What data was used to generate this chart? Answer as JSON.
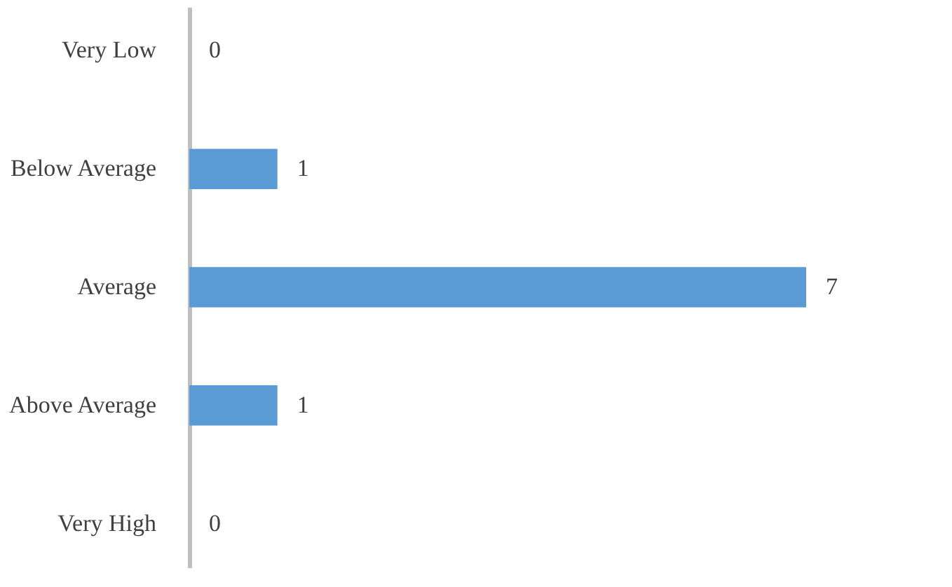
{
  "chart_data": {
    "type": "bar",
    "orientation": "horizontal",
    "categories": [
      "Very Low",
      "Below Average",
      "Average",
      "Above Average",
      "Very High"
    ],
    "values": [
      0,
      1,
      7,
      1,
      0
    ],
    "color": "#5b9bd5",
    "data_labels": true,
    "grid": false
  }
}
